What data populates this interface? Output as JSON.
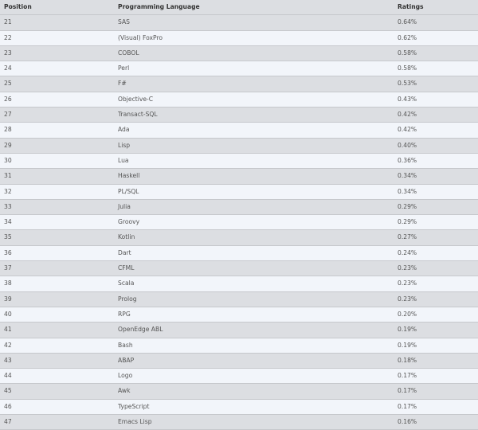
{
  "table": {
    "headers": [
      "Position",
      "Programming Language",
      "Ratings"
    ],
    "rows": [
      [
        "21",
        "SAS",
        "0.64%"
      ],
      [
        "22",
        "(Visual) FoxPro",
        "0.62%"
      ],
      [
        "23",
        "COBOL",
        "0.58%"
      ],
      [
        "24",
        "Perl",
        "0.58%"
      ],
      [
        "25",
        "F#",
        "0.53%"
      ],
      [
        "26",
        "Objective-C",
        "0.43%"
      ],
      [
        "27",
        "Transact-SQL",
        "0.42%"
      ],
      [
        "28",
        "Ada",
        "0.42%"
      ],
      [
        "29",
        "Lisp",
        "0.40%"
      ],
      [
        "30",
        "Lua",
        "0.36%"
      ],
      [
        "31",
        "Haskell",
        "0.34%"
      ],
      [
        "32",
        "PL/SQL",
        "0.34%"
      ],
      [
        "33",
        "Julia",
        "0.29%"
      ],
      [
        "34",
        "Groovy",
        "0.29%"
      ],
      [
        "35",
        "Kotlin",
        "0.27%"
      ],
      [
        "36",
        "Dart",
        "0.24%"
      ],
      [
        "37",
        "CFML",
        "0.23%"
      ],
      [
        "38",
        "Scala",
        "0.23%"
      ],
      [
        "39",
        "Prolog",
        "0.23%"
      ],
      [
        "40",
        "RPG",
        "0.20%"
      ],
      [
        "41",
        "OpenEdge ABL",
        "0.19%"
      ],
      [
        "42",
        "Bash",
        "0.19%"
      ],
      [
        "43",
        "ABAP",
        "0.18%"
      ],
      [
        "44",
        "Logo",
        "0.17%"
      ],
      [
        "45",
        "Awk",
        "0.17%"
      ],
      [
        "46",
        "TypeScript",
        "0.17%"
      ],
      [
        "47",
        "Emacs Lisp",
        "0.16%"
      ]
    ]
  },
  "colors": {
    "stripe_dark": "#dcdee2",
    "stripe_light": "#f2f5fa",
    "border": "#c6c8cc"
  }
}
